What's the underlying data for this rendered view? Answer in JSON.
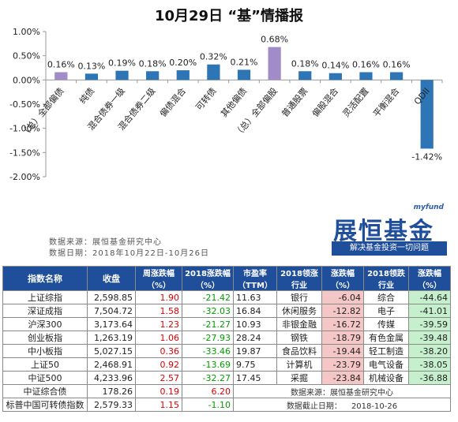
{
  "chart_data": {
    "type": "bar",
    "title": "10月29日 “基”情播报",
    "categories": [
      "（总）全部偏债",
      "纯债",
      "混合债券一级",
      "混合债券二级",
      "偏债混合",
      "可转债",
      "其他偏债",
      "（总）全部偏股",
      "普通股票",
      "偏股混合",
      "灵活配置",
      "平衡混合",
      "QDII"
    ],
    "values": [
      0.16,
      0.13,
      0.19,
      0.18,
      0.2,
      0.32,
      0.21,
      0.68,
      0.18,
      0.14,
      0.16,
      0.16,
      -1.42
    ],
    "value_labels": [
      "0.16%",
      "0.13%",
      "0.19%",
      "0.18%",
      "0.20%",
      "0.32%",
      "0.21%",
      "0.68%",
      "0.18%",
      "0.14%",
      "0.16%",
      "0.16%",
      "-1.42%"
    ],
    "highlighted": [
      0,
      7
    ],
    "ylim": [
      -2.0,
      1.0
    ],
    "yticks": [
      "1.00%",
      "0.50%",
      "0.00%",
      "-0.50%",
      "-1.00%",
      "-1.50%",
      "-2.00%"
    ],
    "ytick_values": [
      1.0,
      0.5,
      0.0,
      -0.5,
      -1.0,
      -1.5,
      -2.0
    ],
    "grid": false,
    "colors": {
      "default": "#2e75b6",
      "highlight": "#a08cc8"
    }
  },
  "notes": {
    "source": "数据来源：展恒基金研究中心",
    "date": "数据日期：2018年10月22日-10月26日"
  },
  "logo": {
    "brand_en": "myfund",
    "brand_cn": "展恒基金",
    "slogan": "解决基金投资一切问题"
  },
  "table": {
    "headers": {
      "name": "指数名称",
      "close": "收盘",
      "week": "周涨跌幅（%）",
      "ytd": "2018涨跌幅（%）",
      "pe": "市盈率（TTM）",
      "ind1": "2018领涨行业",
      "chg1": "涨跌幅（%）",
      "ind2": "2018领跌行业",
      "chg2": "涨跌幅（%）"
    },
    "rows": [
      {
        "name": "上证综指",
        "close": "2,598.85",
        "week": "1.90",
        "ytd": "-21.42",
        "pe": "11.63",
        "ind1": "银行",
        "chg1": "-6.04",
        "ind2": "综合",
        "chg2": "-44.64"
      },
      {
        "name": "深证成指",
        "close": "7,504.72",
        "week": "1.58",
        "ytd": "-32.03",
        "pe": "16.84",
        "ind1": "休闲服务",
        "chg1": "-12.82",
        "ind2": "电子",
        "chg2": "-41.01"
      },
      {
        "name": "沪深300",
        "close": "3,173.64",
        "week": "1.23",
        "ytd": "-21.27",
        "pe": "10.93",
        "ind1": "非银金融",
        "chg1": "-16.72",
        "ind2": "传媒",
        "chg2": "-39.59"
      },
      {
        "name": "创业板指",
        "close": "1,263.19",
        "week": "1.06",
        "ytd": "-27.93",
        "pe": "28.24",
        "ind1": "钢铁",
        "chg1": "-18.79",
        "ind2": "有色金属",
        "chg2": "-39.48"
      },
      {
        "name": "中小板指",
        "close": "5,027.15",
        "week": "0.36",
        "ytd": "-33.46",
        "pe": "19.87",
        "ind1": "食品饮料",
        "chg1": "-19.44",
        "ind2": "轻工制造",
        "chg2": "-38.20"
      },
      {
        "name": "上证50",
        "close": "2,468.91",
        "week": "0.92",
        "ytd": "-13.69",
        "pe": "9.75",
        "ind1": "计算机",
        "chg1": "-23.79",
        "ind2": "电气设备",
        "chg2": "-38.05"
      },
      {
        "name": "中证500",
        "close": "4,233.96",
        "week": "2.57",
        "ytd": "-32.27",
        "pe": "17.45",
        "ind1": "采掘",
        "chg1": "-23.84",
        "ind2": "机械设备",
        "chg2": "-36.88"
      },
      {
        "name": "中证综合债",
        "close": "178.26",
        "week": "0.19",
        "ytd": "6.20",
        "pe": "",
        "ind1": "",
        "chg1": "",
        "ind2": "",
        "chg2": ""
      },
      {
        "name": "标普中国可转债指数",
        "close": "2,579.33",
        "week": "1.15",
        "ytd": "-1.10",
        "pe": "",
        "ind1": "",
        "chg1": "",
        "ind2": "",
        "chg2": ""
      }
    ],
    "footer_source": "数据来源：展恒基金研究中心",
    "footer_date_label": "数据截止日期：",
    "footer_date": "2018-10-26"
  }
}
